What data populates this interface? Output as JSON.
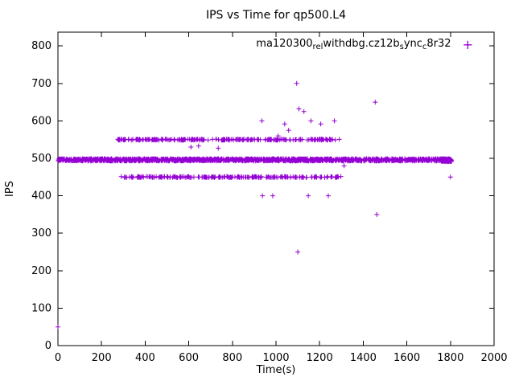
{
  "chart_data": {
    "type": "scatter",
    "title": "IPS vs Time for qp500.L4",
    "xlabel": "Time(s)",
    "ylabel": "IPS",
    "xlim": [
      0,
      2000
    ],
    "ylim": [
      0,
      837
    ],
    "xticks": [
      0,
      200,
      400,
      600,
      800,
      1000,
      1200,
      1400,
      1600,
      1800,
      2000
    ],
    "yticks": [
      0,
      100,
      200,
      300,
      400,
      500,
      600,
      700,
      800
    ],
    "grid": false,
    "legend_position": "top-right-inside",
    "marker": "plus",
    "marker_glyph": "+",
    "color": "#9400d3",
    "seed": 42,
    "legend_plain": "ma120300_rel_withdbg.cz12b_sync_c8r32",
    "legend_segments": [
      {
        "text": "ma120300",
        "sub": false
      },
      {
        "text": "rel",
        "sub": true
      },
      {
        "text": "withdbg.cz12b",
        "sub": false
      },
      {
        "text": "s",
        "sub": true
      },
      {
        "text": "ync",
        "sub": false
      },
      {
        "text": "c",
        "sub": true
      },
      {
        "text": "8r32",
        "sub": false
      }
    ],
    "bands": [
      {
        "label": "main-band-495",
        "y": 496,
        "y_jitter": 3,
        "x_start": 0,
        "x_end": 1800,
        "count": 1500
      },
      {
        "label": "upper-band-550",
        "y": 550,
        "y_jitter": 1.5,
        "x_start": 265,
        "x_end": 1300,
        "count": 250
      },
      {
        "label": "lower-band-450",
        "y": 450,
        "y_jitter": 1.5,
        "x_start": 280,
        "x_end": 1300,
        "count": 210
      },
      {
        "label": "end-cluster-495",
        "y": 495,
        "y_jitter": 4,
        "x_start": 1755,
        "x_end": 1805,
        "count": 70
      }
    ],
    "points": [
      [
        0,
        50
      ],
      [
        610,
        530
      ],
      [
        645,
        533
      ],
      [
        735,
        527
      ],
      [
        935,
        600
      ],
      [
        1010,
        560
      ],
      [
        1040,
        592
      ],
      [
        1058,
        575
      ],
      [
        1095,
        700
      ],
      [
        1105,
        632
      ],
      [
        1128,
        625
      ],
      [
        1160,
        600
      ],
      [
        1205,
        592
      ],
      [
        1268,
        600
      ],
      [
        938,
        400
      ],
      [
        985,
        400
      ],
      [
        1100,
        250
      ],
      [
        1148,
        400
      ],
      [
        1240,
        400
      ],
      [
        1312,
        480
      ],
      [
        1455,
        650
      ],
      [
        1462,
        350
      ],
      [
        1800,
        450
      ]
    ]
  }
}
